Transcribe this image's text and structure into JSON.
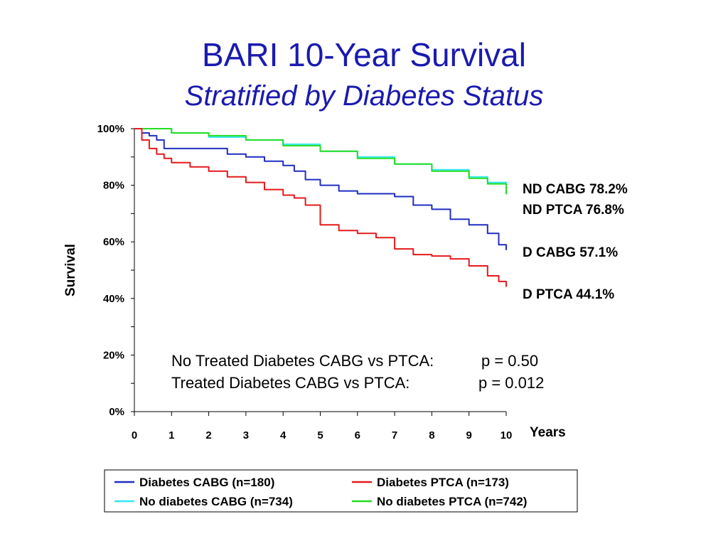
{
  "title": "BARI 10-Year Survival",
  "subtitle": "Stratified by Diabetes Status",
  "chart_data": {
    "type": "line",
    "title": "BARI 10-Year Survival",
    "subtitle": "Stratified by Diabetes Status",
    "xlabel": "Years",
    "ylabel": "Survival",
    "xlim": [
      0,
      10
    ],
    "ylim": [
      0,
      100
    ],
    "x_ticks": [
      "0",
      "1",
      "2",
      "3",
      "4",
      "5",
      "6",
      "7",
      "8",
      "9",
      "10"
    ],
    "y_ticks": [
      "0%",
      "20%",
      "40%",
      "60%",
      "80%",
      "100%"
    ],
    "grid": false,
    "legend_position": "bottom",
    "series": [
      {
        "name": "Diabetes CABG (n=180)",
        "color": "#1f2ec2",
        "x": [
          0,
          0.2,
          0.4,
          0.6,
          0.8,
          1,
          1.5,
          2,
          2.5,
          3,
          3.5,
          4,
          4.3,
          4.6,
          5,
          5.5,
          6,
          6.5,
          7,
          7.5,
          8,
          8.5,
          9,
          9.5,
          9.8,
          10
        ],
        "y": [
          100,
          98.5,
          97.5,
          96,
          93,
          93,
          93,
          93,
          91,
          90,
          88.5,
          87,
          85,
          82,
          80,
          78,
          77,
          77,
          76,
          73,
          71.5,
          68,
          66,
          63,
          59,
          57.1
        ]
      },
      {
        "name": "Diabetes PTCA (n=173)",
        "color": "#e41a1c",
        "x": [
          0,
          0.2,
          0.4,
          0.6,
          0.8,
          1,
          1.5,
          2,
          2.5,
          3,
          3.5,
          4,
          4.3,
          4.6,
          5,
          5.5,
          6,
          6.5,
          7,
          7.5,
          8,
          8.5,
          9,
          9.5,
          9.8,
          10
        ],
        "y": [
          100,
          96,
          93,
          91,
          89.5,
          88,
          86.5,
          85,
          83,
          81,
          78.5,
          76.5,
          75.5,
          73,
          66,
          64,
          63,
          61.5,
          57.5,
          55.5,
          55,
          54,
          51.5,
          48,
          46,
          44.1
        ]
      },
      {
        "name": "No diabetes CABG (n=734)",
        "color": "#33e8f2",
        "x": [
          0,
          1,
          2,
          3,
          4,
          5,
          6,
          7,
          8,
          9,
          9.5,
          10
        ],
        "y": [
          100,
          98.5,
          97,
          96,
          94.5,
          92,
          90,
          87.5,
          85.5,
          83,
          81,
          78.2
        ]
      },
      {
        "name": "No diabetes PTCA (n=742)",
        "color": "#22dd22",
        "x": [
          0,
          1,
          2,
          3,
          4,
          5,
          6,
          7,
          8,
          9,
          9.5,
          10
        ],
        "y": [
          100,
          98.5,
          97.5,
          96,
          94,
          92,
          89.5,
          87.5,
          85,
          82.5,
          80.5,
          76.8
        ]
      }
    ],
    "end_labels": [
      {
        "text": "ND CABG 78.2%"
      },
      {
        "text": "ND PTCA  76.8%"
      },
      {
        "text": "D  CABG  57.1%"
      },
      {
        "text": "D  PTCA   44.1%"
      }
    ],
    "annotations": [
      {
        "text": "No Treated Diabetes CABG vs PTCA:",
        "p": "p = 0.50"
      },
      {
        "text": "Treated Diabetes CABG vs PTCA:",
        "p": "p = 0.012"
      }
    ]
  }
}
